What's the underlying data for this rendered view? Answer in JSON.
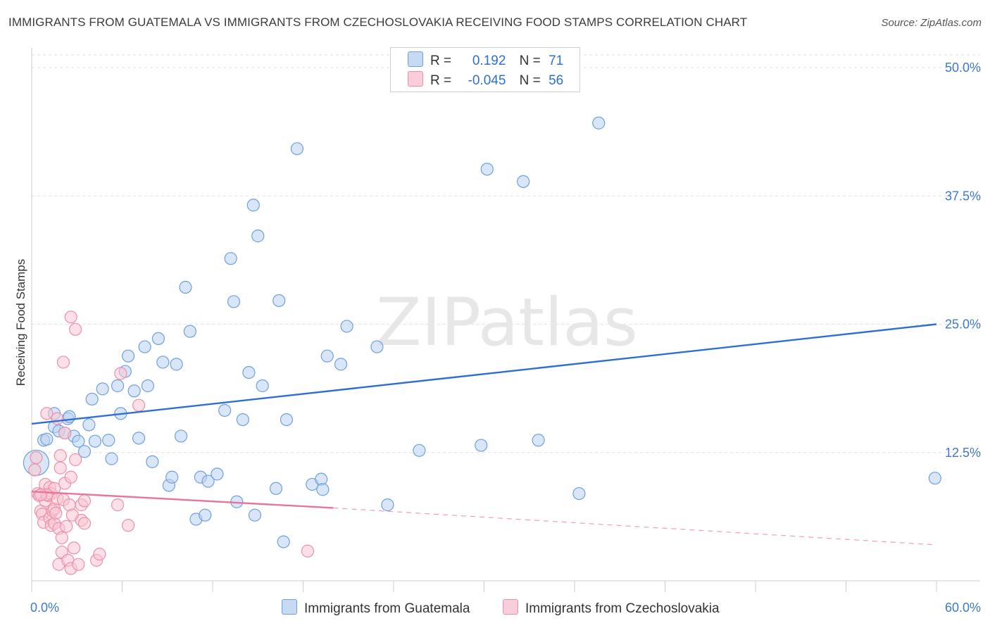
{
  "chart_data": {
    "type": "scatter",
    "title": "IMMIGRANTS FROM GUATEMALA VS IMMIGRANTS FROM CZECHOSLOVAKIA RECEIVING FOOD STAMPS CORRELATION CHART",
    "source": "Source: ZipAtlas.com",
    "ylabel": "Receiving Food Stamps",
    "xlim": [
      0,
      60
    ],
    "ylim": [
      0,
      50
    ],
    "x_tick_labels": [
      "0.0%",
      "60.0%"
    ],
    "y_tick_labels": [
      "12.5%",
      "25.0%",
      "37.5%",
      "50.0%"
    ],
    "y_tick_values": [
      12.5,
      25.0,
      37.5,
      50.0
    ],
    "watermark": "ZIPatlas",
    "legend": {
      "row1": {
        "r_label": "R =",
        "r_value": "0.192",
        "n_label": "N =",
        "n_value": "71"
      },
      "row2": {
        "r_label": "R =",
        "r_value": "-0.045",
        "n_label": "N =",
        "n_value": "56"
      }
    },
    "series": [
      {
        "name": "Immigrants from Guatemala",
        "color": "#6fa0dc",
        "fill": "#b9d1f0",
        "line_color": "#2f6fd0",
        "trend": {
          "x0": 0,
          "y0": 15.3,
          "x1": 60,
          "y1": 25.0
        },
        "points": [
          [
            0.3,
            11.5
          ],
          [
            0.8,
            13.7
          ],
          [
            1.0,
            13.8
          ],
          [
            1.5,
            15.0
          ],
          [
            1.5,
            16.3
          ],
          [
            1.8,
            14.6
          ],
          [
            2.2,
            14.4
          ],
          [
            2.4,
            15.8
          ],
          [
            2.5,
            16.0
          ],
          [
            2.8,
            14.1
          ],
          [
            3.1,
            13.6
          ],
          [
            3.5,
            12.6
          ],
          [
            3.8,
            15.2
          ],
          [
            4.0,
            17.7
          ],
          [
            4.2,
            13.6
          ],
          [
            4.7,
            18.7
          ],
          [
            5.1,
            13.7
          ],
          [
            5.3,
            11.9
          ],
          [
            5.7,
            19.0
          ],
          [
            5.9,
            16.3
          ],
          [
            6.2,
            20.4
          ],
          [
            6.4,
            21.9
          ],
          [
            6.8,
            18.5
          ],
          [
            7.1,
            13.9
          ],
          [
            7.5,
            22.8
          ],
          [
            7.7,
            19.0
          ],
          [
            8.0,
            11.6
          ],
          [
            8.4,
            23.6
          ],
          [
            8.7,
            21.3
          ],
          [
            9.1,
            9.3
          ],
          [
            9.3,
            10.1
          ],
          [
            9.6,
            21.1
          ],
          [
            9.9,
            14.1
          ],
          [
            10.2,
            28.6
          ],
          [
            10.5,
            24.3
          ],
          [
            10.9,
            6.0
          ],
          [
            11.2,
            10.1
          ],
          [
            11.5,
            6.4
          ],
          [
            11.7,
            9.7
          ],
          [
            12.3,
            10.4
          ],
          [
            12.8,
            16.6
          ],
          [
            13.2,
            31.4
          ],
          [
            13.4,
            27.2
          ],
          [
            13.6,
            7.7
          ],
          [
            14.0,
            15.7
          ],
          [
            14.4,
            20.3
          ],
          [
            14.7,
            36.6
          ],
          [
            14.8,
            6.4
          ],
          [
            15.0,
            33.6
          ],
          [
            15.3,
            19.0
          ],
          [
            16.2,
            9.0
          ],
          [
            16.4,
            27.3
          ],
          [
            16.7,
            3.8
          ],
          [
            16.9,
            15.7
          ],
          [
            17.6,
            42.1
          ],
          [
            18.6,
            9.4
          ],
          [
            19.2,
            9.9
          ],
          [
            19.3,
            8.9
          ],
          [
            19.6,
            21.9
          ],
          [
            20.5,
            21.1
          ],
          [
            20.9,
            24.8
          ],
          [
            22.9,
            22.8
          ],
          [
            23.6,
            7.4
          ],
          [
            25.7,
            12.7
          ],
          [
            29.8,
            13.2
          ],
          [
            30.2,
            40.1
          ],
          [
            32.6,
            38.9
          ],
          [
            33.6,
            13.7
          ],
          [
            36.3,
            8.5
          ],
          [
            37.6,
            44.6
          ],
          [
            59.9,
            10.0
          ]
        ]
      },
      {
        "name": "Immigrants from Czechoslovakia",
        "color": "#ee8faa",
        "fill": "#f8c6d4",
        "line_color": "#e8759a",
        "trend": {
          "x0": 0,
          "y0": 8.7,
          "x1": 20.0,
          "y1": 7.1
        },
        "trend_dashed": {
          "x0": 20.0,
          "y0": 7.1,
          "x1": 60,
          "y1": 3.5
        },
        "points": [
          [
            0.2,
            10.8
          ],
          [
            0.3,
            12.0
          ],
          [
            0.4,
            8.5
          ],
          [
            0.5,
            8.3
          ],
          [
            0.6,
            6.8
          ],
          [
            0.7,
            6.5
          ],
          [
            0.8,
            5.7
          ],
          [
            0.9,
            7.8
          ],
          [
            0.9,
            9.4
          ],
          [
            1.0,
            16.3
          ],
          [
            1.1,
            8.3
          ],
          [
            1.2,
            9.1
          ],
          [
            1.2,
            6.1
          ],
          [
            1.3,
            5.4
          ],
          [
            1.3,
            8.5
          ],
          [
            1.4,
            6.8
          ],
          [
            1.5,
            7.0
          ],
          [
            1.5,
            5.6
          ],
          [
            1.5,
            9.0
          ],
          [
            1.6,
            6.6
          ],
          [
            1.7,
            8.0
          ],
          [
            1.7,
            15.8
          ],
          [
            1.8,
            5.1
          ],
          [
            1.8,
            1.6
          ],
          [
            1.9,
            11.0
          ],
          [
            1.9,
            12.2
          ],
          [
            2.0,
            4.2
          ],
          [
            2.0,
            2.8
          ],
          [
            2.1,
            21.3
          ],
          [
            2.1,
            7.9
          ],
          [
            2.2,
            9.5
          ],
          [
            2.2,
            14.4
          ],
          [
            2.3,
            5.3
          ],
          [
            2.4,
            2.0
          ],
          [
            2.5,
            7.4
          ],
          [
            2.6,
            1.2
          ],
          [
            2.6,
            25.7
          ],
          [
            2.6,
            10.1
          ],
          [
            2.7,
            6.4
          ],
          [
            2.8,
            3.2
          ],
          [
            2.9,
            24.5
          ],
          [
            2.9,
            11.8
          ],
          [
            3.1,
            1.6
          ],
          [
            3.3,
            5.9
          ],
          [
            3.3,
            7.4
          ],
          [
            3.5,
            7.8
          ],
          [
            3.5,
            5.6
          ],
          [
            4.3,
            2.0
          ],
          [
            4.5,
            2.6
          ],
          [
            5.7,
            7.4
          ],
          [
            5.9,
            20.2
          ],
          [
            6.4,
            5.4
          ],
          [
            7.1,
            17.1
          ],
          [
            18.3,
            2.9
          ],
          [
            1.0,
            8.4
          ],
          [
            0.6,
            8.4
          ]
        ]
      }
    ]
  }
}
